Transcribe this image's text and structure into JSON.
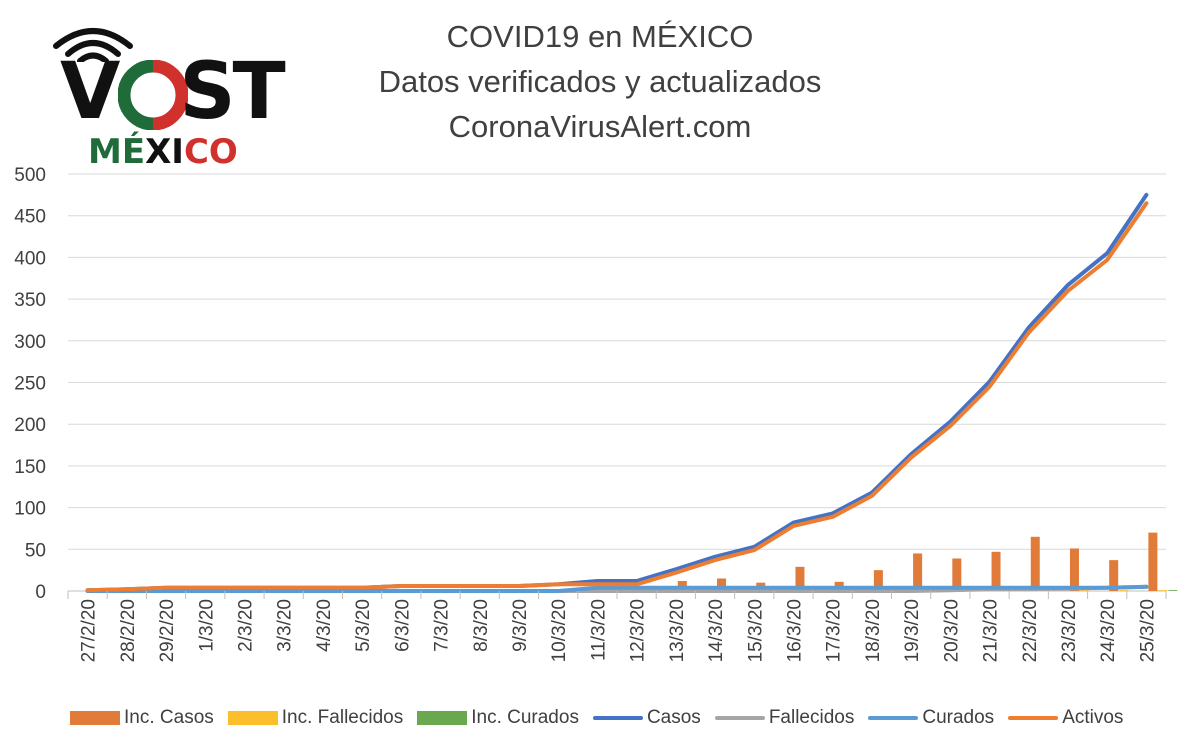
{
  "header": {
    "title_line1": "COVID19 en MÉXICO",
    "title_line2": "Datos verificados y actualizados",
    "title_line3": "CoronaVirusAlert.com"
  },
  "logo": {
    "part1": "V",
    "part2": "O",
    "part3": "ST",
    "sub1": "MÉ",
    "sub2": "XI",
    "sub3": "CO",
    "colors": {
      "green": "#1f6b3a",
      "red": "#d0312d",
      "dark": "#111111"
    }
  },
  "legend": {
    "items": [
      {
        "label": "Inc. Casos",
        "kind": "bar",
        "color": "#e07b39"
      },
      {
        "label": "Inc. Fallecidos",
        "kind": "bar",
        "color": "#fbbf2c"
      },
      {
        "label": "Inc. Curados",
        "kind": "bar",
        "color": "#6aa84f"
      },
      {
        "label": "Casos",
        "kind": "line",
        "color": "#4472c4"
      },
      {
        "label": "Fallecidos",
        "kind": "line",
        "color": "#a5a5a5"
      },
      {
        "label": "Curados",
        "kind": "line",
        "color": "#5b9bd5"
      },
      {
        "label": "Activos",
        "kind": "line",
        "color": "#ed7d31"
      }
    ]
  },
  "chart_data": {
    "type": "line",
    "categories": [
      "27/2/20",
      "28/2/20",
      "29/2/20",
      "1/3/20",
      "2/3/20",
      "3/3/20",
      "4/3/20",
      "5/3/20",
      "6/3/20",
      "7/3/20",
      "8/3/20",
      "9/3/20",
      "10/3/20",
      "11/3/20",
      "12/3/20",
      "13/3/20",
      "14/3/20",
      "15/3/20",
      "16/3/20",
      "17/3/20",
      "18/3/20",
      "19/3/20",
      "20/3/20",
      "21/3/20",
      "22/3/20",
      "23/3/20",
      "24/3/20",
      "25/3/20"
    ],
    "ylim": [
      0,
      500
    ],
    "yticks": [
      0,
      50,
      100,
      150,
      200,
      250,
      300,
      350,
      400,
      450,
      500
    ],
    "grid": true,
    "legend_position": "bottom",
    "series": [
      {
        "name": "Inc. Casos",
        "type": "bar",
        "color": "#e07b39",
        "values": [
          1,
          1,
          2,
          0,
          0,
          0,
          0,
          0,
          1,
          1,
          0,
          0,
          2,
          4,
          0,
          12,
          15,
          10,
          29,
          11,
          25,
          45,
          39,
          47,
          65,
          51,
          37,
          70
        ]
      },
      {
        "name": "Inc. Fallecidos",
        "type": "bar",
        "color": "#fbbf2c",
        "values": [
          0,
          0,
          0,
          0,
          0,
          0,
          0,
          0,
          0,
          0,
          0,
          0,
          0,
          0,
          0,
          0,
          0,
          0,
          0,
          0,
          0,
          0,
          1,
          0,
          0,
          1,
          1,
          1
        ]
      },
      {
        "name": "Inc. Curados",
        "type": "bar",
        "color": "#6aa84f",
        "values": [
          0,
          0,
          0,
          0,
          0,
          0,
          0,
          0,
          0,
          0,
          0,
          0,
          0,
          4,
          0,
          0,
          0,
          0,
          0,
          0,
          0,
          0,
          0,
          0,
          0,
          0,
          0,
          1
        ]
      },
      {
        "name": "Casos",
        "type": "line",
        "color": "#4472c4",
        "values": [
          1,
          2,
          4,
          4,
          4,
          4,
          4,
          4,
          6,
          6,
          6,
          6,
          8,
          12,
          12,
          26,
          41,
          53,
          82,
          93,
          118,
          164,
          203,
          251,
          316,
          367,
          405,
          475
        ]
      },
      {
        "name": "Fallecidos",
        "type": "line",
        "color": "#a5a5a5",
        "values": [
          0,
          0,
          0,
          0,
          0,
          0,
          0,
          0,
          0,
          0,
          0,
          0,
          0,
          0,
          0,
          0,
          0,
          0,
          0,
          0,
          0,
          0,
          1,
          2,
          2,
          3,
          4,
          5
        ]
      },
      {
        "name": "Curados",
        "type": "line",
        "color": "#5b9bd5",
        "values": [
          0,
          0,
          0,
          0,
          0,
          0,
          0,
          0,
          0,
          0,
          0,
          0,
          0,
          4,
          4,
          4,
          4,
          4,
          4,
          4,
          4,
          4,
          4,
          4,
          4,
          4,
          4,
          5
        ]
      },
      {
        "name": "Activos",
        "type": "line",
        "color": "#ed7d31",
        "values": [
          1,
          2,
          4,
          4,
          4,
          4,
          4,
          4,
          6,
          6,
          6,
          6,
          8,
          8,
          8,
          22,
          37,
          49,
          78,
          89,
          114,
          160,
          198,
          245,
          310,
          360,
          397,
          465
        ]
      }
    ]
  }
}
